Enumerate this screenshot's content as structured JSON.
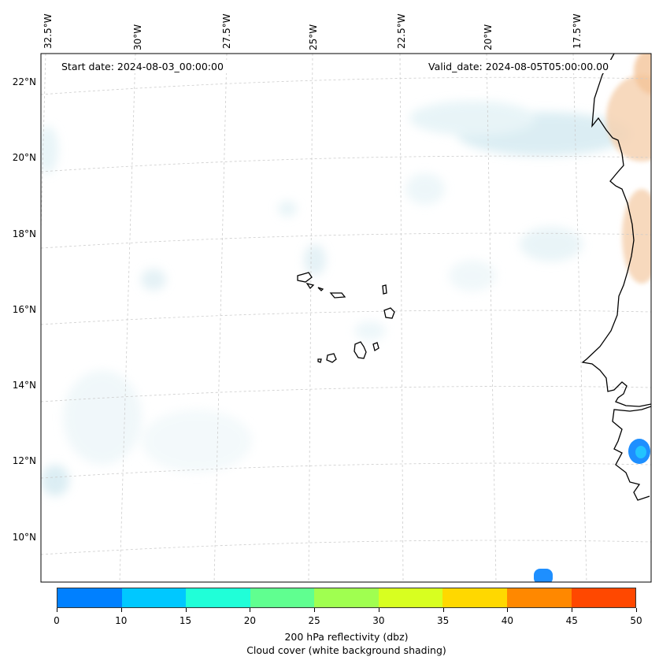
{
  "map": {
    "start_date": "Start date: 2024-08-03_00:00:00",
    "valid_date": "Valid_date: 2024-08-05T05:00:00.00",
    "lon_labels": [
      "32.5°W",
      "30°W",
      "27.5°W",
      "25°W",
      "22.5°W",
      "20°W",
      "17.5°W"
    ],
    "lat_labels": [
      "22°N",
      "20°N",
      "18°N",
      "16°N",
      "14°N",
      "12°N",
      "10°N"
    ]
  },
  "colorbar": {
    "title": "200 hPa reflectivity (dbz)",
    "subtitle": "Cloud cover (white background shading)",
    "ticks": [
      "0",
      "10",
      "15",
      "20",
      "25",
      "30",
      "35",
      "40",
      "45",
      "50"
    ],
    "colors": [
      "#0080ff",
      "#00c8ff",
      "#20ffd8",
      "#60ff90",
      "#a0ff50",
      "#d8ff20",
      "#ffd800",
      "#ff8800",
      "#ff4800"
    ]
  },
  "colors": {
    "cloud": "#cfe6ee",
    "warm": "#f6c9a2",
    "reflect": "#1e90ff",
    "coast": "#000000"
  }
}
